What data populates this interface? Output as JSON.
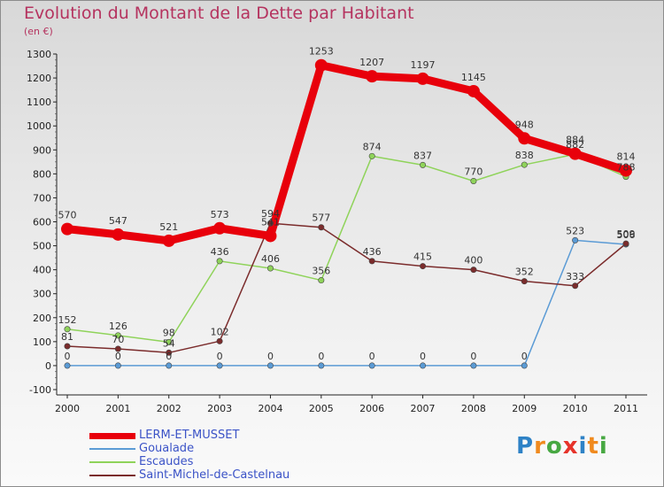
{
  "title": "Evolution du Montant de la Dette par Habitant",
  "subtitle": "(en €)",
  "logo": {
    "text": "Proxiti",
    "colors": [
      "#2e82c6",
      "#f08a1e",
      "#47a842",
      "#e6332a",
      "#2e82c6",
      "#f08a1e",
      "#47a842"
    ]
  },
  "chart_data": {
    "type": "line",
    "title": "Evolution du Montant de la Dette par Habitant",
    "ylabel": "(en €)",
    "xlabel": "",
    "x": [
      "2000",
      "2001",
      "2002",
      "2003",
      "2004",
      "2005",
      "2006",
      "2007",
      "2008",
      "2009",
      "2010",
      "2011"
    ],
    "ylim": [
      -100,
      1300
    ],
    "yticks": [
      -100,
      0,
      100,
      200,
      300,
      400,
      500,
      600,
      700,
      800,
      900,
      1000,
      1100,
      1200,
      1300
    ],
    "grid": false,
    "legend_position": "bottom-left",
    "series": [
      {
        "name": "LERM-ET-MUSSET",
        "color": "#e8000b",
        "emphasis": "thick",
        "values": [
          570,
          547,
          521,
          573,
          541,
          1253,
          1207,
          1197,
          1145,
          948,
          884,
          814
        ],
        "labels": [
          "570",
          "547",
          "521",
          "573",
          "541",
          "1253",
          "1207",
          "1197",
          "1145",
          "948",
          "884",
          "814"
        ]
      },
      {
        "name": "Goualade",
        "color": "#5b9bd5",
        "values": [
          0,
          0,
          0,
          0,
          0,
          0,
          0,
          0,
          0,
          0,
          523,
          506
        ],
        "labels": [
          "0",
          "0",
          "0",
          "0",
          "0",
          "0",
          "0",
          "0",
          "0",
          "0",
          "523",
          "506"
        ]
      },
      {
        "name": "Escaudes",
        "color": "#8fd35a",
        "values": [
          152,
          126,
          98,
          436,
          406,
          356,
          874,
          837,
          770,
          838,
          882,
          788
        ],
        "labels": [
          "152",
          "126",
          "98",
          "436",
          "406",
          "356",
          "874",
          "837",
          "770",
          "838",
          "882",
          "788"
        ]
      },
      {
        "name": "Saint-Michel-de-Castelnau",
        "color": "#7b2c2c",
        "values": [
          81,
          70,
          54,
          102,
          594,
          577,
          436,
          415,
          400,
          352,
          333,
          509
        ],
        "labels": [
          "81",
          "70",
          "54",
          "102",
          "594",
          "577",
          "436",
          "415",
          "400",
          "352",
          "333",
          "509"
        ]
      }
    ]
  }
}
